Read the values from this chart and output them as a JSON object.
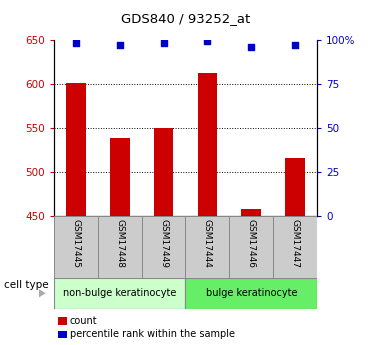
{
  "title": "GDS840 / 93252_at",
  "samples": [
    "GSM17445",
    "GSM17448",
    "GSM17449",
    "GSM17444",
    "GSM17446",
    "GSM17447"
  ],
  "bar_values": [
    601,
    538,
    550,
    612,
    457,
    515
  ],
  "percentile_values": [
    98,
    97,
    98,
    99,
    96,
    97
  ],
  "ylim_left": [
    450,
    650
  ],
  "ylim_right": [
    0,
    100
  ],
  "yticks_left": [
    450,
    500,
    550,
    600,
    650
  ],
  "yticks_right": [
    0,
    25,
    50,
    75,
    100
  ],
  "ytick_labels_right": [
    "0",
    "25",
    "50",
    "75",
    "100%"
  ],
  "bar_color": "#cc0000",
  "dot_color": "#0000cc",
  "bar_bottom": 450,
  "grid_values": [
    500,
    550,
    600
  ],
  "cell_types": [
    {
      "label": "non-bulge keratinocyte",
      "start": 0,
      "end": 3,
      "color": "#ccffcc"
    },
    {
      "label": "bulge keratinocyte",
      "start": 3,
      "end": 6,
      "color": "#66ee66"
    }
  ],
  "legend_items": [
    {
      "color": "#cc0000",
      "label": "count"
    },
    {
      "color": "#0000cc",
      "label": "percentile rank within the sample"
    }
  ],
  "tick_label_color_left": "#cc0000",
  "tick_label_color_right": "#0000cc",
  "cell_type_label": "cell type",
  "sample_box_color": "#cccccc",
  "arrow_color": "#aaaaaa"
}
